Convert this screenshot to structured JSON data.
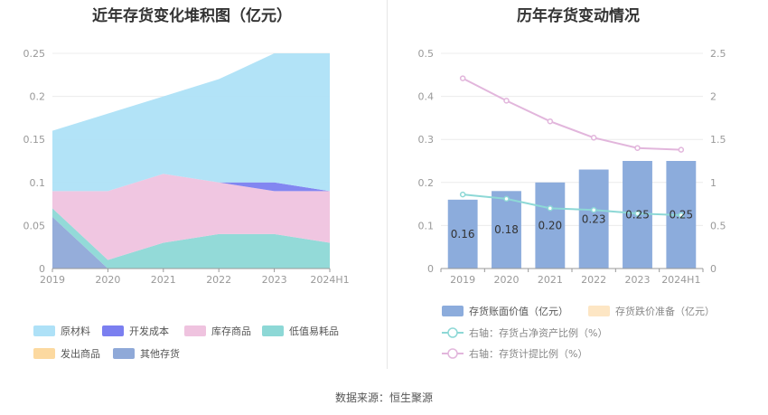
{
  "left_title": "近年存货变化堆积图（亿元）",
  "right_title": "历年存货变动情况",
  "source": "数据来源：恒生聚源",
  "chart_data": [
    {
      "type": "area",
      "title": "近年存货变化堆积图（亿元）",
      "categories": [
        "2019",
        "2020",
        "2021",
        "2022",
        "2023",
        "2024H1"
      ],
      "ylim": [
        0,
        0.25
      ],
      "yticks": [
        "0",
        "0.05",
        "0.1",
        "0.15",
        "0.2",
        "0.25"
      ],
      "stacked": true,
      "legend_position": "bottom",
      "series": [
        {
          "name": "其他存货",
          "color": "#8fa9d8",
          "values": [
            0.06,
            0.0,
            0.0,
            0.0,
            0.0,
            0.0
          ]
        },
        {
          "name": "发出商品",
          "color": "#fcd9a0",
          "values": [
            0.0,
            0.0,
            0.0,
            0.0,
            0.0,
            0.0
          ]
        },
        {
          "name": "低值易耗品",
          "color": "#8dd8d6",
          "values": [
            0.01,
            0.01,
            0.03,
            0.04,
            0.04,
            0.03
          ]
        },
        {
          "name": "库存商品",
          "color": "#efc3df",
          "values": [
            0.02,
            0.08,
            0.08,
            0.06,
            0.05,
            0.06
          ]
        },
        {
          "name": "开发成本",
          "color": "#7b7ff0",
          "values": [
            0.0,
            0.0,
            0.0,
            0.0,
            0.01,
            0.0
          ]
        },
        {
          "name": "原材料",
          "color": "#aee1f7",
          "values": [
            0.07,
            0.09,
            0.09,
            0.12,
            0.15,
            0.16
          ]
        }
      ],
      "legend_order": [
        "原材料",
        "开发成本",
        "库存商品",
        "低值易耗品",
        "发出商品",
        "其他存货"
      ]
    },
    {
      "type": "bar",
      "title": "历年存货变动情况",
      "categories": [
        "2019",
        "2020",
        "2021",
        "2022",
        "2023",
        "2024H1"
      ],
      "ylim": [
        0,
        0.5
      ],
      "yticks": [
        "0",
        "0.1",
        "0.2",
        "0.3",
        "0.4",
        "0.5"
      ],
      "y2lim": [
        0,
        2.5
      ],
      "y2ticks": [
        "0",
        "0.5",
        "1",
        "1.5",
        "2",
        "2.5"
      ],
      "legend_position": "bottom",
      "series": [
        {
          "name": "存货账面价值（亿元）",
          "type": "bar",
          "color": "#8cacdc",
          "values": [
            0.16,
            0.18,
            0.2,
            0.23,
            0.25,
            0.25
          ],
          "labels": [
            "0.16",
            "0.18",
            "0.20",
            "0.23",
            "0.25",
            "0.25"
          ]
        },
        {
          "name": "存货跌价准备（亿元）",
          "type": "bar",
          "color": "#fde6c4",
          "values": [
            0,
            0,
            0,
            0,
            0,
            0
          ]
        },
        {
          "name": "右轴：存货占净资产比例（%）",
          "type": "line",
          "axis": "right",
          "color": "#8dd8d6",
          "values": [
            0.86,
            0.81,
            0.7,
            0.68,
            0.64,
            0.62
          ]
        },
        {
          "name": "右轴：存货计提比例（%）",
          "type": "line",
          "axis": "right",
          "color": "#e2b6dc",
          "values": [
            2.21,
            1.95,
            1.71,
            1.52,
            1.4,
            1.38
          ]
        }
      ]
    }
  ]
}
